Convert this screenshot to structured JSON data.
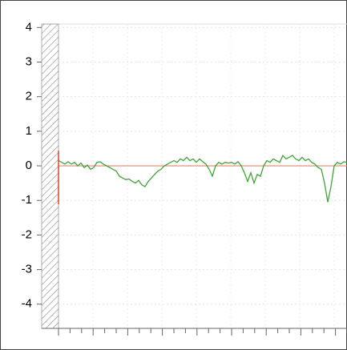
{
  "chart_data": {
    "type": "line",
    "ylim": [
      -4.7,
      4.1
    ],
    "yticks": [
      4,
      3,
      2,
      1,
      0,
      -1,
      -2,
      -3,
      -4
    ],
    "grid": true,
    "reference_line": {
      "value": 0,
      "color": "#f08060"
    },
    "series": [
      {
        "color": "#3fa535",
        "values": [
          0.15,
          0.1,
          0.05,
          0.12,
          0.05,
          0.1,
          0.0,
          0.08,
          -0.05,
          0.02,
          -0.1,
          -0.05,
          0.1,
          0.12,
          0.05,
          0.0,
          -0.05,
          -0.1,
          -0.15,
          -0.3,
          -0.35,
          -0.4,
          -0.38,
          -0.45,
          -0.5,
          -0.42,
          -0.55,
          -0.6,
          -0.45,
          -0.35,
          -0.25,
          -0.15,
          -0.1,
          0.0,
          0.05,
          0.1,
          0.15,
          0.1,
          0.2,
          0.15,
          0.25,
          0.15,
          0.2,
          0.1,
          0.2,
          0.12,
          0.05,
          -0.1,
          -0.3,
          0.0,
          0.1,
          0.05,
          0.1,
          0.08,
          0.1,
          0.05,
          0.12,
          0.0,
          -0.2,
          -0.45,
          -0.2,
          -0.5,
          -0.25,
          -0.3,
          0.0,
          0.15,
          0.1,
          0.2,
          0.15,
          0.1,
          0.3,
          0.2,
          0.25,
          0.3,
          0.2,
          0.15,
          0.25,
          0.15,
          0.2,
          0.1,
          0.05,
          -0.05,
          -0.1,
          -0.5,
          -1.05,
          -0.6,
          0.0,
          0.1,
          0.05,
          0.12,
          0.1
        ]
      }
    ]
  }
}
